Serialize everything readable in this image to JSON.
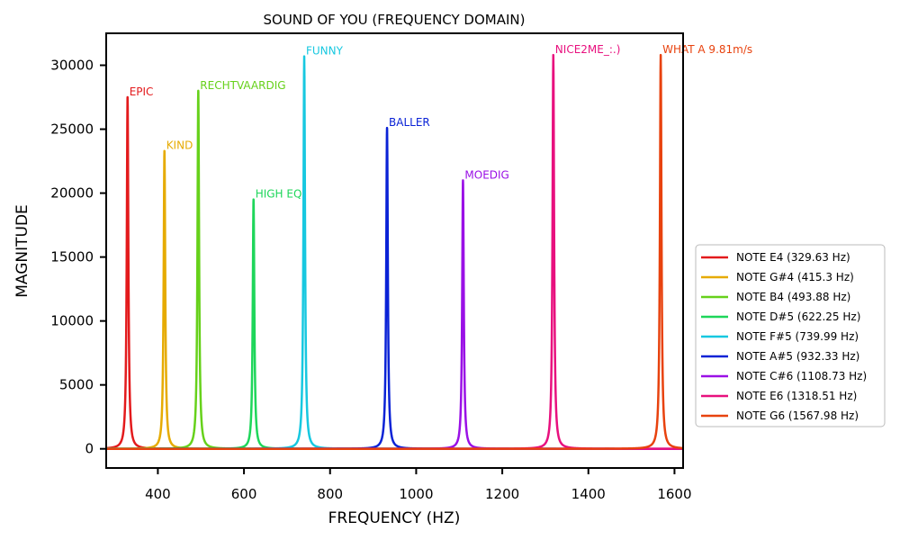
{
  "chart_data": {
    "type": "line",
    "title": "SOUND OF YOU (FREQUENCY DOMAIN)",
    "xlabel": "FREQUENCY (HZ)",
    "ylabel": "MAGNITUDE",
    "xlim": [
      280,
      1620
    ],
    "ylim": [
      -1500,
      32500
    ],
    "xticks": [
      400,
      600,
      800,
      1000,
      1200,
      1400,
      1600
    ],
    "yticks": [
      0,
      5000,
      10000,
      15000,
      20000,
      25000,
      30000
    ],
    "legend_position": "center-right",
    "series": [
      {
        "name": "NOTE E4 (329.63 Hz)",
        "freq": 329.63,
        "peak": 27500,
        "annotation": "EPIC",
        "color": "#e31a1c"
      },
      {
        "name": "NOTE G#4 (415.3 Hz)",
        "freq": 415.3,
        "peak": 23300,
        "annotation": "KIND",
        "color": "#e6ab02"
      },
      {
        "name": "NOTE B4 (493.88 Hz)",
        "freq": 493.88,
        "peak": 28000,
        "annotation": "RECHTVAARDIG",
        "color": "#66d11a"
      },
      {
        "name": "NOTE D#5 (622.25 Hz)",
        "freq": 622.25,
        "peak": 19500,
        "annotation": "HIGH EQ",
        "color": "#1ed65a"
      },
      {
        "name": "NOTE F#5 (739.99 Hz)",
        "freq": 739.99,
        "peak": 30700,
        "annotation": "FUNNY",
        "color": "#17c8e0"
      },
      {
        "name": "NOTE A#5 (932.33 Hz)",
        "freq": 932.33,
        "peak": 25100,
        "annotation": "BALLER",
        "color": "#0a22d6"
      },
      {
        "name": "NOTE C#6 (1108.73 Hz)",
        "freq": 1108.73,
        "peak": 21000,
        "annotation": "MOEDIG",
        "color": "#9a10e6"
      },
      {
        "name": "NOTE E6 (1318.51 Hz)",
        "freq": 1318.51,
        "peak": 30800,
        "annotation": "NICE2ME_:.)",
        "color": "#e8107e"
      },
      {
        "name": "NOTE G6 (1567.98 Hz)",
        "freq": 1567.98,
        "peak": 30800,
        "annotation": "WHAT A 9.81m/s",
        "color": "#e8420e"
      }
    ]
  }
}
